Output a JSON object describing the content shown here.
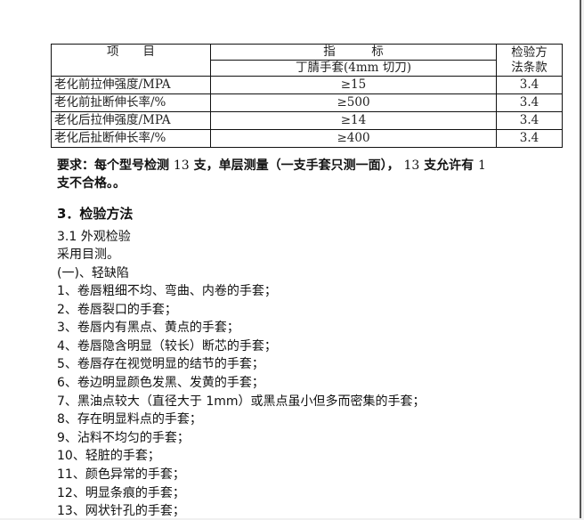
{
  "table": {
    "header": {
      "item": "项　　目",
      "index": "指　　　标",
      "index_sub": "丁腈手套(4mm 切刀)",
      "method": "检验方法条款",
      "method_l1": "检验方",
      "method_l2": "法条款"
    },
    "rows": [
      {
        "item": "老化前拉伸强度/MPA",
        "value": "≥15",
        "clause": "3.4"
      },
      {
        "item": "老化前扯断伸长率/%",
        "value": "≥500",
        "clause": "3.4"
      },
      {
        "item": "老化后拉伸强度/MPA",
        "value": "≥14",
        "clause": "3.4"
      },
      {
        "item": "老化后扯断伸长率/%",
        "value": "≥400",
        "clause": "3.4"
      }
    ]
  },
  "requirement": {
    "a": "要求：每个型号检测 ",
    "n1": "13",
    "b": " 支，单层测量（一支手套只测一面）， ",
    "n2": "13",
    "c": " 支允许有 ",
    "n3": "1",
    "line2": "支不合格。。"
  },
  "section": {
    "title": "3．检验方法",
    "sub": "3.1 外观检验",
    "method": "采用目测。",
    "category": "(一)、轻缺陷"
  },
  "items": [
    "1、卷唇粗细不均、弯曲、内卷的手套；",
    "2、卷唇裂口的手套；",
    "3、卷唇内有黑点、黄点的手套；",
    "4、卷唇隐含明显（较长）断芯的手套；",
    "5、卷唇存在视觉明显的结节的手套；",
    "6、卷边明显颜色发黑、发黄的手套；",
    "7、黑油点较大（直径大于 1mm）或黑点虽小但多而密集的手套；",
    "8、存在明显料点的手套；",
    "9、沾料不均匀的手套；",
    "10、轻脏的手套；",
    "11、颜色异常的手套；",
    "12、明显条痕的手套；",
    "13、网状针孔的手套；"
  ]
}
